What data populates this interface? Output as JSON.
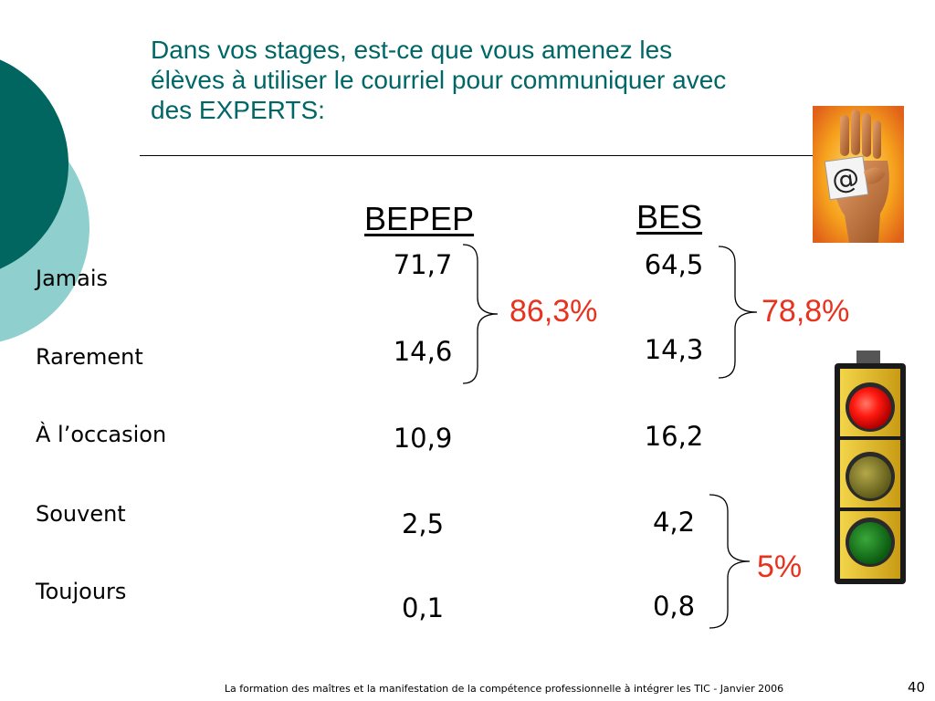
{
  "slide": {
    "title_lines": [
      "Dans vos stages, est-ce que vous amenez les",
      "élèves à utiliser le courriel pour communiquer avec",
      "des EXPERTS:"
    ],
    "columns": [
      "BEPEP",
      "BES"
    ],
    "rows": [
      "Jamais",
      "Rarement",
      "À l’occasion",
      "Souvent",
      "Toujours"
    ],
    "bepep_values": [
      "71,7",
      "14,6",
      "10,9",
      "2,5",
      "0,1"
    ],
    "bes_values": [
      "64,5",
      "14,3",
      "16,2",
      "4,2",
      "0,8"
    ],
    "brackets": {
      "bepep_top": "86,3%",
      "bes_top": "78,8%",
      "bes_bottom": "5%"
    },
    "footer": "La formation des maîtres et la manifestation de la compétence professionnelle à intégrer les TIC - Janvier 2006",
    "page_number": "40"
  },
  "colors": {
    "teal_dark": "#00665f",
    "teal_light": "#8fcfcd",
    "title": "#006666",
    "accent_red": "#e8321e"
  },
  "icons": [
    "email-hand-image",
    "traffic-light-image"
  ]
}
